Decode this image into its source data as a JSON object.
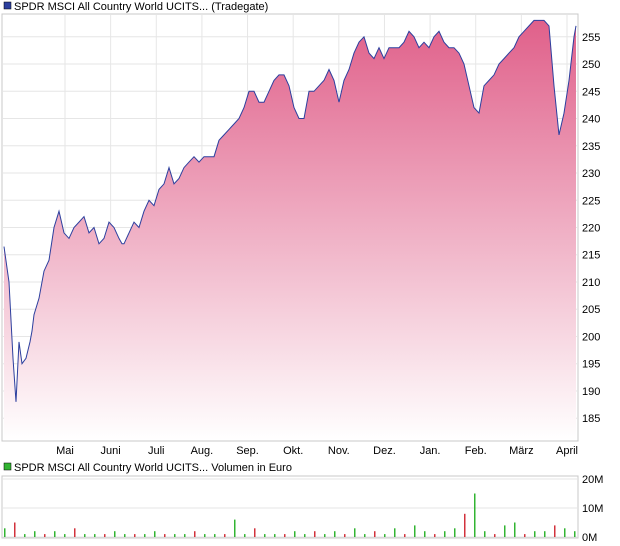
{
  "chart_data": [
    {
      "type": "area",
      "legend": "SPDR MSCI All Country World UCITS... (Tradegate)",
      "series_color": "#2c3f9e",
      "fill_top_color": "#e0608a",
      "x_tick_labels": [
        "Mai",
        "Juni",
        "Juli",
        "Aug.",
        "Sep.",
        "Okt.",
        "Nov.",
        "Dez.",
        "Jan.",
        "Feb.",
        "März",
        "April"
      ],
      "y_ticks": [
        185,
        190,
        195,
        200,
        205,
        210,
        215,
        220,
        225,
        230,
        235,
        240,
        245,
        250,
        255
      ],
      "ylim": [
        181,
        259
      ],
      "grid": true,
      "x": [
        0,
        5,
        9,
        12,
        15,
        18,
        22,
        26,
        28,
        30,
        35,
        40,
        45,
        50,
        55,
        60,
        65,
        70,
        75,
        80,
        85,
        90,
        95,
        100,
        105,
        110,
        115,
        118,
        120,
        125,
        130,
        135,
        140,
        145,
        150,
        155,
        160,
        165,
        170,
        175,
        180,
        185,
        190,
        195,
        200,
        205,
        210,
        215,
        220,
        225,
        230,
        235,
        240,
        245,
        250,
        255,
        260,
        265,
        270,
        275,
        280,
        285,
        290,
        295,
        300,
        305,
        310,
        315,
        320,
        325,
        330,
        335,
        340,
        345,
        350,
        355,
        360,
        365,
        370,
        375,
        380,
        385,
        390,
        395,
        400,
        405,
        410,
        415,
        420,
        425,
        430,
        435,
        440,
        445,
        450,
        455,
        460,
        465,
        470,
        475,
        480,
        485,
        490,
        495,
        500,
        505,
        510,
        515,
        520,
        525,
        530,
        535,
        540,
        545,
        550,
        555,
        560,
        565,
        570,
        572
      ],
      "values": [
        216.5,
        210,
        196,
        188,
        199,
        195,
        196,
        199,
        201,
        204,
        207,
        212,
        214,
        220,
        223,
        219,
        218,
        220,
        221,
        222,
        219,
        220,
        217,
        218,
        221,
        220,
        218,
        217,
        217,
        219,
        221,
        220,
        223,
        225,
        224,
        227,
        228,
        231,
        228,
        229,
        231,
        232,
        233,
        232,
        233,
        233,
        233,
        236,
        237,
        238,
        239,
        240,
        242,
        245,
        245,
        243,
        243,
        245,
        247,
        248,
        248,
        246,
        242,
        240,
        240,
        245,
        245,
        246,
        247,
        249,
        247,
        243,
        247,
        249,
        252,
        254,
        255,
        252,
        251,
        253,
        251,
        253,
        253,
        253,
        254,
        256,
        255,
        253,
        254,
        253,
        255,
        256,
        254,
        253,
        253,
        252,
        250,
        246,
        242,
        241,
        246,
        247,
        248,
        250,
        251,
        252,
        253,
        255,
        256,
        257,
        258,
        258,
        258,
        257,
        246,
        237,
        241,
        247,
        255,
        257
      ]
    },
    {
      "type": "bar",
      "legend": "SPDR MSCI All Country World UCITS... Volumen in Euro",
      "y_tick_labels": [
        "0M",
        "10M",
        "20M"
      ],
      "ylim": [
        0,
        20
      ],
      "grid": true,
      "note_none": "",
      "x": [
        0,
        10,
        20,
        30,
        40,
        50,
        60,
        70,
        80,
        90,
        100,
        110,
        120,
        130,
        140,
        150,
        160,
        170,
        180,
        190,
        200,
        210,
        220,
        230,
        240,
        250,
        260,
        270,
        280,
        290,
        300,
        310,
        320,
        330,
        340,
        350,
        360,
        370,
        380,
        390,
        400,
        410,
        420,
        430,
        440,
        450,
        460,
        470,
        480,
        490,
        500,
        510,
        520,
        530,
        540,
        550,
        560,
        570
      ],
      "values": [
        3,
        5,
        1,
        2,
        1,
        2,
        1,
        3,
        1,
        1,
        1,
        2,
        1,
        1,
        1,
        2,
        1,
        1,
        1,
        2,
        1,
        1,
        1,
        6,
        1,
        3,
        1,
        1,
        1,
        2,
        1,
        2,
        1,
        2,
        1,
        3,
        1,
        2,
        1,
        3,
        1,
        4,
        2,
        1,
        2,
        3,
        8,
        15,
        2,
        1,
        4,
        5,
        1,
        2,
        2,
        4,
        3,
        2
      ],
      "colors": {
        "up": "#32b432",
        "down": "#d2323c"
      }
    }
  ]
}
